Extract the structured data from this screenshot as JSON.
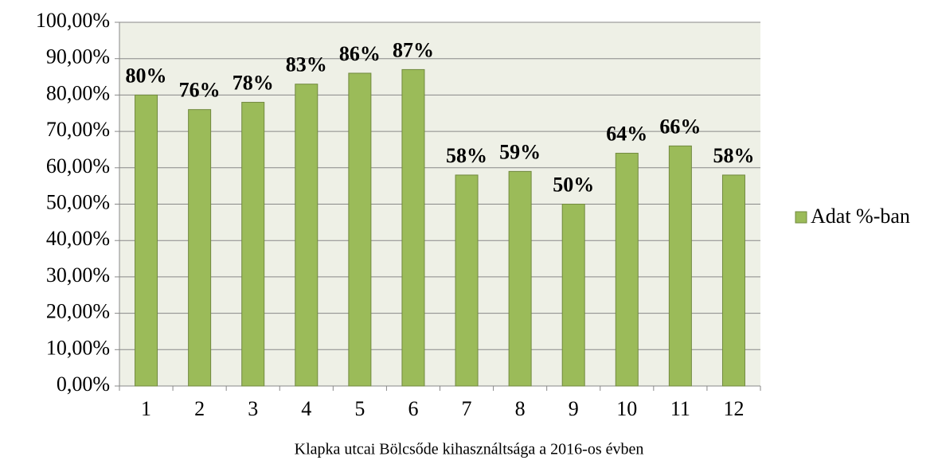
{
  "chart_data": {
    "type": "bar",
    "caption": "Klapka utcai Bölcsőde kihasználtsága a 2016-os évben",
    "categories": [
      "1",
      "2",
      "3",
      "4",
      "5",
      "6",
      "7",
      "8",
      "9",
      "10",
      "11",
      "12"
    ],
    "series": [
      {
        "name": "Adat %-ban",
        "color": "#9bbb59",
        "values": [
          80,
          76,
          78,
          83,
          86,
          87,
          58,
          59,
          50,
          64,
          66,
          58
        ],
        "value_labels": [
          "80%",
          "76%",
          "78%",
          "83%",
          "86%",
          "87%",
          "58%",
          "59%",
          "50%",
          "64%",
          "66%",
          "58%"
        ]
      }
    ],
    "ylim": [
      0,
      100
    ],
    "yticks": [
      {
        "value": 0,
        "label": "0,00%"
      },
      {
        "value": 10,
        "label": "10,00%"
      },
      {
        "value": 20,
        "label": "20,00%"
      },
      {
        "value": 30,
        "label": "30,00%"
      },
      {
        "value": 40,
        "label": "40,00%"
      },
      {
        "value": 50,
        "label": "50,00%"
      },
      {
        "value": 60,
        "label": "60,00%"
      },
      {
        "value": 70,
        "label": "70,00%"
      },
      {
        "value": 80,
        "label": "80,00%"
      },
      {
        "value": 90,
        "label": "90,00%"
      },
      {
        "value": 100,
        "label": "100,00%"
      }
    ],
    "grid": true,
    "legend": "right"
  }
}
